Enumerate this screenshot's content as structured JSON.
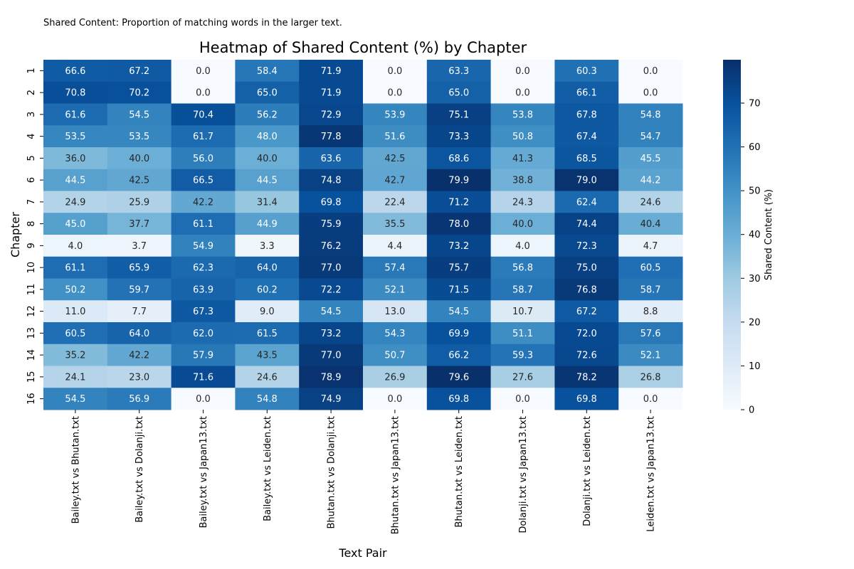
{
  "note": "Shared Content: Proportion of matching words in the larger text.",
  "chart_data": {
    "type": "heatmap",
    "title": "Heatmap of Shared Content (%) by Chapter",
    "xlabel": "Text Pair",
    "ylabel": "Chapter",
    "colorbar_label": "Shared Content (%)",
    "colormap": "Blues",
    "value_range": [
      0,
      79.9
    ],
    "colorbar_ticks": [
      0,
      10,
      20,
      30,
      40,
      50,
      60,
      70
    ],
    "columns": [
      "Bailey.txt vs Bhutan.txt",
      "Bailey.txt vs Dolanji.txt",
      "Bailey.txt vs Japan13.txt",
      "Bailey.txt vs Leiden.txt",
      "Bhutan.txt vs Dolanji.txt",
      "Bhutan.txt vs Japan13.txt",
      "Bhutan.txt vs Leiden.txt",
      "Dolanji.txt vs Japan13.txt",
      "Dolanji.txt vs Leiden.txt",
      "Leiden.txt vs Japan13.txt"
    ],
    "rows": [
      "1",
      "2",
      "3",
      "4",
      "5",
      "6",
      "7",
      "8",
      "9",
      "10",
      "11",
      "12",
      "13",
      "14",
      "15",
      "16"
    ],
    "values": [
      [
        66.6,
        67.2,
        0.0,
        58.4,
        71.9,
        0.0,
        63.3,
        0.0,
        60.3,
        0.0
      ],
      [
        70.8,
        70.2,
        0.0,
        65.0,
        71.9,
        0.0,
        65.0,
        0.0,
        66.1,
        0.0
      ],
      [
        61.6,
        54.5,
        70.4,
        56.2,
        72.9,
        53.9,
        75.1,
        53.8,
        67.8,
        54.8
      ],
      [
        53.5,
        53.5,
        61.7,
        48.0,
        77.8,
        51.6,
        73.3,
        50.8,
        67.4,
        54.7
      ],
      [
        36.0,
        40.0,
        56.0,
        40.0,
        63.6,
        42.5,
        68.6,
        41.3,
        68.5,
        45.5
      ],
      [
        44.5,
        42.5,
        66.5,
        44.5,
        74.8,
        42.7,
        79.9,
        38.8,
        79.0,
        44.2
      ],
      [
        24.9,
        25.9,
        42.2,
        31.4,
        69.8,
        22.4,
        71.2,
        24.3,
        62.4,
        24.6
      ],
      [
        45.0,
        37.7,
        61.1,
        44.9,
        75.9,
        35.5,
        78.0,
        40.0,
        74.4,
        40.4
      ],
      [
        4.0,
        3.7,
        54.9,
        3.3,
        76.2,
        4.4,
        73.2,
        4.0,
        72.3,
        4.7
      ],
      [
        61.1,
        65.9,
        62.3,
        64.0,
        77.0,
        57.4,
        75.7,
        56.8,
        75.0,
        60.5
      ],
      [
        50.2,
        59.7,
        63.9,
        60.2,
        72.2,
        52.1,
        71.5,
        58.7,
        76.8,
        58.7
      ],
      [
        11.0,
        7.7,
        67.3,
        9.0,
        54.5,
        13.0,
        54.5,
        10.7,
        67.2,
        8.8
      ],
      [
        60.5,
        64.0,
        62.0,
        61.5,
        73.2,
        54.3,
        69.9,
        51.1,
        72.0,
        57.6
      ],
      [
        35.2,
        42.2,
        57.9,
        43.5,
        77.0,
        50.7,
        66.2,
        59.3,
        72.6,
        52.1
      ],
      [
        24.1,
        23.0,
        71.6,
        24.6,
        78.9,
        26.9,
        79.6,
        27.6,
        78.2,
        26.8
      ],
      [
        54.5,
        56.9,
        0.0,
        54.8,
        74.9,
        0.0,
        69.8,
        0.0,
        69.8,
        0.0
      ]
    ]
  }
}
